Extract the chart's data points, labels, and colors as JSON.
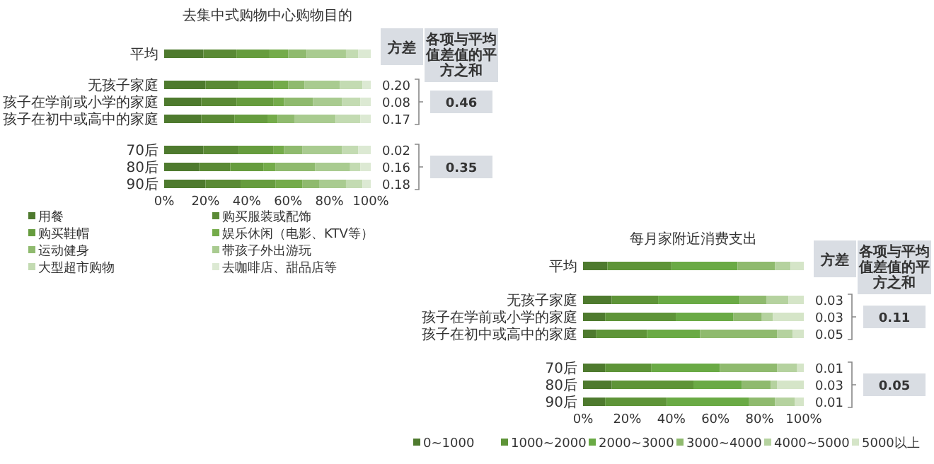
{
  "chart_data": [
    {
      "type": "bar",
      "orientation": "horizontal",
      "stacked": true,
      "title": "去集中式购物中心购物目的",
      "categories": [
        "平均",
        "无孩子家庭",
        "孩子在学前或小学的家庭",
        "孩子在初中或高中的家庭",
        "70后",
        "80后",
        "90后"
      ],
      "xlim": [
        0,
        100
      ],
      "xticks": [
        {
          "value": 0,
          "label": "0%"
        },
        {
          "value": 20,
          "label": "20%"
        },
        {
          "value": 40,
          "label": "40%"
        },
        {
          "value": 60,
          "label": "60%"
        },
        {
          "value": 80,
          "label": "80%"
        },
        {
          "value": 100,
          "label": "100%"
        }
      ],
      "legend": "bottom",
      "series": [
        {
          "name": "用餐",
          "color": "#4e7a2e",
          "values": [
            19,
            20,
            18,
            18,
            19,
            17,
            20
          ]
        },
        {
          "name": "购买服装或配饰",
          "color": "#5a8a35",
          "values": [
            16,
            16,
            17,
            16,
            17,
            15,
            17
          ]
        },
        {
          "name": "购买鞋帽",
          "color": "#669c3e",
          "values": [
            16,
            17,
            18,
            16,
            17,
            16,
            17
          ]
        },
        {
          "name": "娱乐休闲（电影、KTV等）",
          "color": "#74ab4a",
          "values": [
            9,
            7,
            5,
            5,
            5,
            6,
            13
          ]
        },
        {
          "name": "运动健身",
          "color": "#8fba6e",
          "values": [
            9,
            8,
            14,
            8,
            9,
            19,
            8
          ]
        },
        {
          "name": "带孩子外出游玩",
          "color": "#a9cb90",
          "values": [
            19,
            17,
            14,
            20,
            19,
            17,
            13
          ]
        },
        {
          "name": "大型超市购物",
          "color": "#c3dbb2",
          "values": [
            6,
            11,
            9,
            12,
            8,
            5,
            8
          ]
        },
        {
          "name": "去咖啡店、甜品店等",
          "color": "#dce9d3",
          "values": [
            6,
            4,
            5,
            5,
            6,
            5,
            4
          ]
        }
      ],
      "annotations": [
        "方差",
        "各项与平均值差值的平方之和",
        "0.20",
        "0.08",
        "0.17",
        "0.02",
        "0.16",
        "0.18",
        "0.46",
        "0.35"
      ]
    },
    {
      "type": "bar",
      "orientation": "horizontal",
      "stacked": true,
      "title": "每月家附近消费支出",
      "categories": [
        "平均",
        "无孩子家庭",
        "孩子在学前或小学的家庭",
        "孩子在初中或高中的家庭",
        "70后",
        "80后",
        "90后"
      ],
      "xlim": [
        0,
        100
      ],
      "xticks": [
        {
          "value": 0,
          "label": "0%"
        },
        {
          "value": 20,
          "label": "20%"
        },
        {
          "value": 40,
          "label": "40%"
        },
        {
          "value": 60,
          "label": "60%"
        },
        {
          "value": 80,
          "label": "80%"
        },
        {
          "value": 100,
          "label": "100%"
        }
      ],
      "legend": "bottom",
      "series": [
        {
          "name": "0~1000",
          "color": "#4e7a2e",
          "values": [
            11,
            13,
            10,
            6,
            10,
            13,
            10
          ]
        },
        {
          "name": "1000~2000",
          "color": "#5e9438",
          "values": [
            29,
            21,
            32,
            23,
            21,
            37,
            28
          ]
        },
        {
          "name": "2000~3000",
          "color": "#6aaa45",
          "values": [
            30,
            37,
            26,
            24,
            31,
            22,
            37
          ]
        },
        {
          "name": "3000~4000",
          "color": "#8fba6e",
          "values": [
            17,
            12,
            13,
            35,
            26,
            13,
            12
          ]
        },
        {
          "name": "4000~5000",
          "color": "#b5d29f",
          "values": [
            7,
            10,
            5,
            7,
            9,
            3,
            9
          ]
        },
        {
          "name": "5000以上",
          "color": "#d5e5c8",
          "values": [
            6,
            7,
            14,
            5,
            3,
            12,
            4
          ]
        }
      ],
      "annotations": [
        "方差",
        "各项与平均值差值的平方之和",
        "0.03",
        "0.03",
        "0.05",
        "0.01",
        "0.03",
        "0.01",
        "0.11",
        "0.05"
      ]
    }
  ]
}
